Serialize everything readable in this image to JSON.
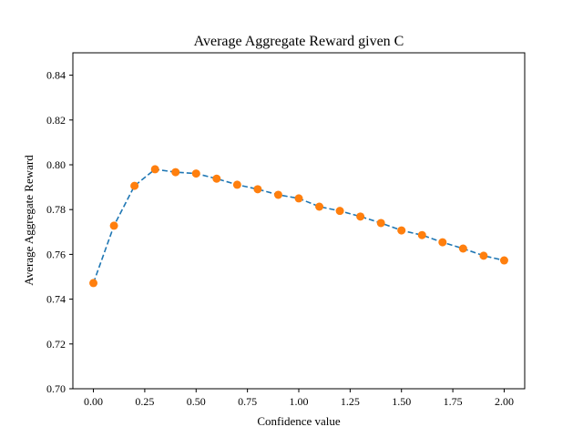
{
  "chart_data": {
    "type": "line",
    "title": "Average Aggregate Reward given C",
    "xlabel": "Confidence value",
    "ylabel": "Average Aggregate Reward",
    "xlim": [
      -0.1,
      2.1
    ],
    "ylim": [
      0.7,
      0.85
    ],
    "xticks": [
      0.0,
      0.25,
      0.5,
      0.75,
      1.0,
      1.25,
      1.5,
      1.75,
      2.0
    ],
    "xtick_labels": [
      "0.00",
      "0.25",
      "0.50",
      "0.75",
      "1.00",
      "1.25",
      "1.50",
      "1.75",
      "2.00"
    ],
    "yticks": [
      0.7,
      0.72,
      0.74,
      0.76,
      0.78,
      0.8,
      0.82,
      0.84
    ],
    "ytick_labels": [
      "0.70",
      "0.72",
      "0.74",
      "0.76",
      "0.78",
      "0.80",
      "0.82",
      "0.84"
    ],
    "grid": false,
    "line_color": "#1f77b4",
    "line_style": "dashed",
    "marker_color": "#ff7f0e",
    "x": [
      0.0,
      0.1,
      0.2,
      0.3,
      0.4,
      0.5,
      0.6,
      0.7,
      0.8,
      0.9,
      1.0,
      1.1,
      1.2,
      1.3,
      1.4,
      1.5,
      1.6,
      1.7,
      1.8,
      1.9,
      2.0
    ],
    "y": [
      0.7472,
      0.7728,
      0.7906,
      0.798,
      0.7967,
      0.7961,
      0.7938,
      0.7911,
      0.7891,
      0.7866,
      0.785,
      0.7813,
      0.7794,
      0.7769,
      0.774,
      0.7707,
      0.7686,
      0.7654,
      0.7626,
      0.7594,
      0.7573
    ]
  }
}
